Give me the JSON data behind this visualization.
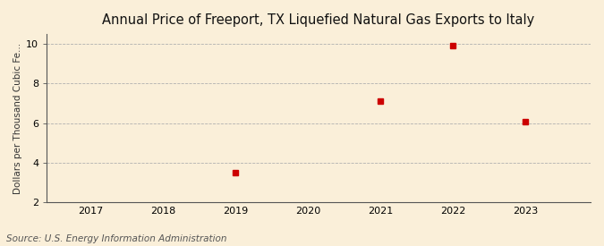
{
  "title": "Annual Price of Freeport, TX Liquefied Natural Gas Exports to Italy",
  "ylabel": "Dollars per Thousand Cubic Fe...",
  "source": "Source: U.S. Energy Information Administration",
  "x_data": [
    2019,
    2021,
    2022,
    2023
  ],
  "y_data": [
    3.5,
    7.1,
    9.9,
    6.05
  ],
  "xlim": [
    2016.4,
    2023.9
  ],
  "ylim": [
    2,
    10.5
  ],
  "yticks": [
    2,
    4,
    6,
    8,
    10
  ],
  "xticks": [
    2017,
    2018,
    2019,
    2020,
    2021,
    2022,
    2023
  ],
  "marker_color": "#cc0000",
  "marker_size": 4,
  "grid_color": "#b0b0b0",
  "background_color": "#faefd9",
  "title_fontsize": 10.5,
  "axis_fontsize": 8,
  "ylabel_fontsize": 7.5,
  "source_fontsize": 7.5
}
